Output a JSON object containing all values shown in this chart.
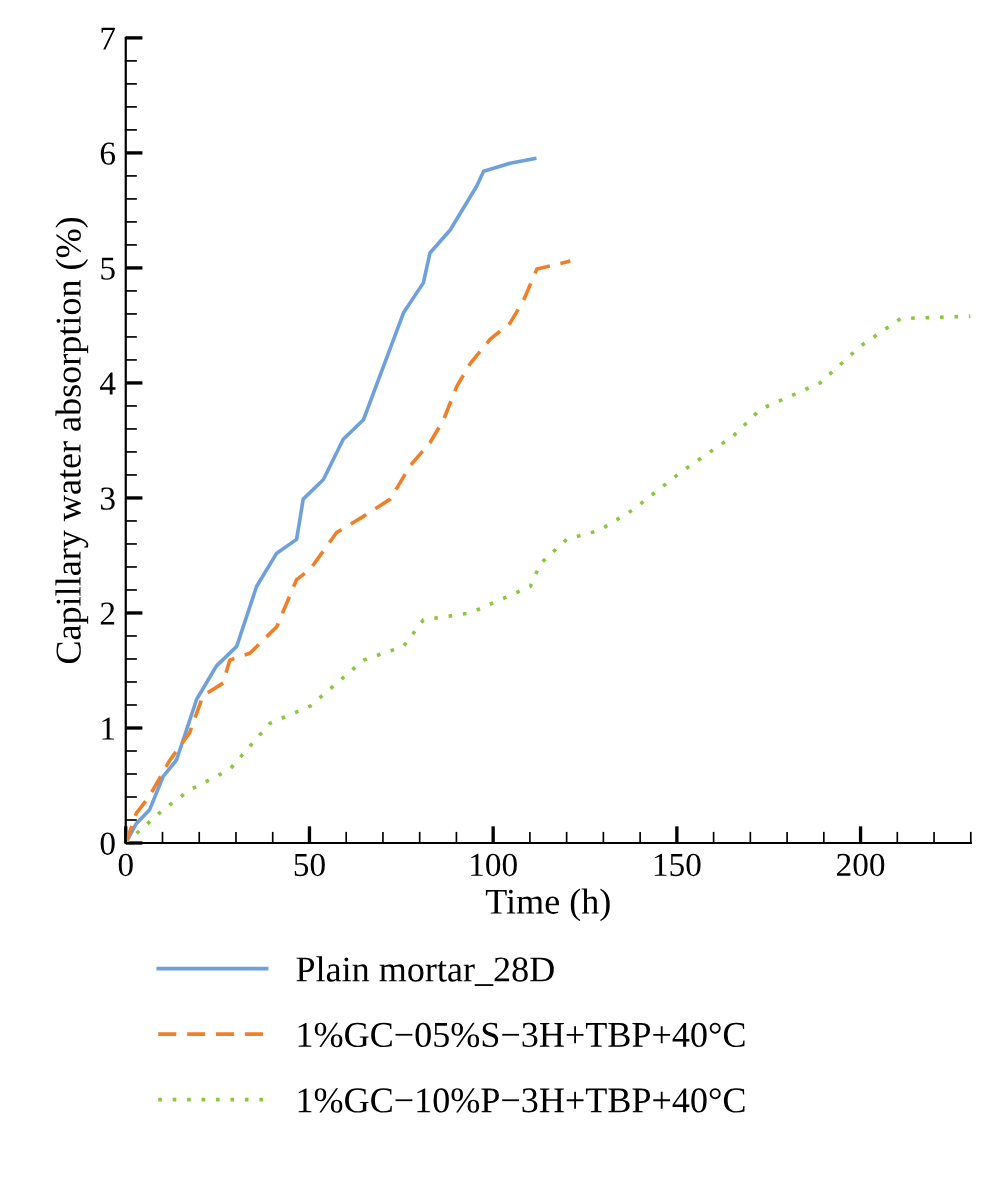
{
  "chart_data": {
    "type": "line",
    "xlabel": "Time (h)",
    "ylabel": "Capillary water absorption (%)",
    "xlim": [
      0,
      230
    ],
    "ylim": [
      0,
      7
    ],
    "xticks": [
      0,
      50,
      100,
      150,
      200
    ],
    "yticks": [
      0,
      1,
      2,
      3,
      4,
      5,
      6,
      7
    ],
    "grid": false,
    "legend": "bottom",
    "marker": "none",
    "series": [
      {
        "name": "Plain mortar_28D",
        "color": "#6fa0dc",
        "line_style": "solid",
        "x": [
          0,
          2.9,
          6.5,
          10.2,
          13.8,
          19.3,
          24.7,
          30.2,
          35.6,
          41.1,
          46.5,
          48.3,
          53.8,
          59.2,
          64.7,
          70.1,
          75.6,
          81,
          82.8,
          88.3,
          95.5,
          97.4,
          104.6,
          111.3
        ],
        "values": [
          0,
          0.17,
          0.29,
          0.58,
          0.72,
          1.25,
          1.54,
          1.71,
          2.23,
          2.52,
          2.64,
          2.99,
          3.16,
          3.51,
          3.68,
          4.14,
          4.61,
          4.87,
          5.13,
          5.33,
          5.71,
          5.84,
          5.91,
          5.95
        ]
      },
      {
        "name": "1%GC−05%S−3H+TBP+40°C",
        "color": "#f07f2a",
        "line_style": "dashed",
        "x": [
          0,
          2.9,
          6.5,
          12,
          17.4,
          21,
          26.5,
          28.3,
          33.8,
          41.1,
          46.5,
          50.2,
          57.4,
          64.7,
          72,
          77.4,
          82.8,
          86.5,
          90.1,
          93.8,
          99.2,
          104.6,
          108.3,
          111.9,
          121
        ],
        "values": [
          0,
          0.26,
          0.41,
          0.72,
          0.96,
          1.28,
          1.39,
          1.59,
          1.65,
          1.88,
          2.29,
          2.38,
          2.7,
          2.84,
          2.99,
          3.28,
          3.48,
          3.68,
          3.97,
          4.17,
          4.38,
          4.52,
          4.72,
          4.99,
          5.06
        ]
      },
      {
        "name": "1%GC−10%P−3H+TBP+40°C",
        "color": "#8cc63f",
        "line_style": "dotted",
        "x": [
          0,
          10.2,
          17.4,
          28.3,
          39.2,
          50.2,
          64.7,
          75.6,
          81,
          93.8,
          110.1,
          112.9,
          120,
          129,
          138.2,
          150.9,
          165.4,
          172.7,
          189,
          200,
          210.9,
          229.9
        ],
        "values": [
          0,
          0.29,
          0.46,
          0.64,
          1.04,
          1.19,
          1.59,
          1.71,
          1.94,
          2.0,
          2.23,
          2.43,
          2.64,
          2.72,
          2.9,
          3.22,
          3.54,
          3.77,
          4.0,
          4.32,
          4.56,
          4.58
        ]
      }
    ]
  }
}
